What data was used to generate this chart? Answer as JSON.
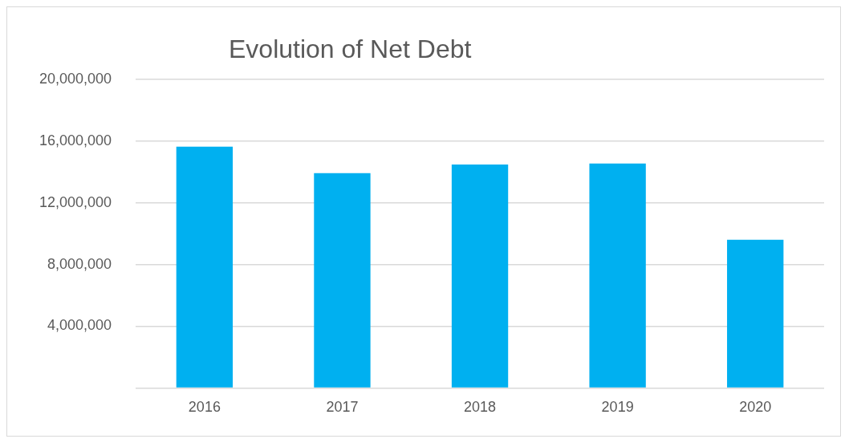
{
  "chart_data": {
    "type": "bar",
    "title": "Evolution of Net Debt",
    "categories": [
      "2016",
      "2017",
      "2018",
      "2019",
      "2020"
    ],
    "values": [
      15640000,
      13920000,
      14490000,
      14550000,
      9610000
    ],
    "color": "#00b0f0",
    "ylim": [
      0,
      20000000
    ],
    "yticks": [
      {
        "value": 0,
        "label": null
      },
      {
        "value": 4000000,
        "label": "4,000,000"
      },
      {
        "value": 8000000,
        "label": "8,000,000"
      },
      {
        "value": 12000000,
        "label": "12,000,000"
      },
      {
        "value": 16000000,
        "label": "16,000,000"
      },
      {
        "value": 20000000,
        "label": "20,000,000"
      }
    ],
    "grid": "y",
    "legend": false
  }
}
